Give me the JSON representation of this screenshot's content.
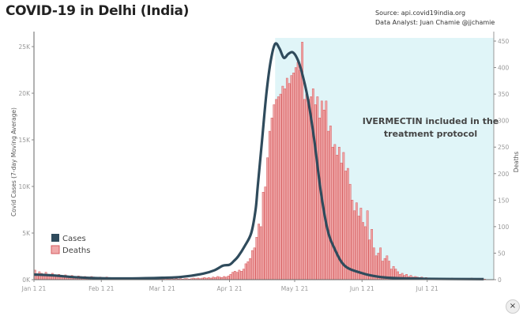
{
  "title": "COVID-19 in Delhi (India)",
  "source": "Source: api.covid19india.org",
  "analyst": "Data Analyst:  Juan Chamie @jjchamie",
  "annotation": [
    "IVERMECTIN included in the",
    "treatment protocol"
  ],
  "close_label": "×",
  "colors": {
    "cases": "#2f4b5c",
    "deaths_fill": "#f0a9aa",
    "deaths_stroke": "#d65b5e",
    "shade": "#e0f5f8"
  },
  "chart_data": {
    "type": "bar+line",
    "xlabel": "",
    "ylabel_left": "Covid Cases (7-day Moving Average)",
    "ylabel_right": "Deaths",
    "x_ticks": [
      "Jan 1 21",
      "Feb 1 21",
      "Mar 1 21",
      "Apr 1 21",
      "May 1 21",
      "Jun 1 21",
      "Jul 1 21"
    ],
    "x_tick_dates": [
      "2021-01-01",
      "2021-02-01",
      "2021-03-01",
      "2021-04-01",
      "2021-05-01",
      "2021-06-01",
      "2021-07-01"
    ],
    "y_left_ticks": [
      "0K",
      "5K",
      "10K",
      "15K",
      "20K",
      "25K"
    ],
    "y_left_values": [
      0,
      5000,
      10000,
      15000,
      20000,
      25000
    ],
    "y_right_ticks": [
      "0",
      "50",
      "100",
      "150",
      "200",
      "250",
      "300",
      "350",
      "400",
      "450"
    ],
    "y_right_values": [
      0,
      50,
      100,
      150,
      200,
      250,
      300,
      350,
      400,
      450
    ],
    "grid": false,
    "legend": {
      "placement": "bottom-left",
      "entries": [
        "Cases",
        "Deaths"
      ]
    },
    "shaded_region": {
      "start": "2021-04-22",
      "end": "2021-07-27",
      "label": "IVERMECTIN included in the treatment protocol"
    },
    "deaths_start_date": "2021-01-01",
    "series": [
      {
        "name": "Cases",
        "kind": "line",
        "axis": "left",
        "points": [
          [
            "2021-01-01",
            550
          ],
          [
            "2021-01-10",
            450
          ],
          [
            "2021-01-20",
            260
          ],
          [
            "2021-02-01",
            150
          ],
          [
            "2021-02-15",
            130
          ],
          [
            "2021-03-01",
            200
          ],
          [
            "2021-03-10",
            300
          ],
          [
            "2021-03-20",
            650
          ],
          [
            "2021-03-25",
            1000
          ],
          [
            "2021-03-29",
            1500
          ],
          [
            "2021-04-01",
            1600
          ],
          [
            "2021-04-03",
            2000
          ],
          [
            "2021-04-05",
            2500
          ],
          [
            "2021-04-08",
            3600
          ],
          [
            "2021-04-11",
            5000
          ],
          [
            "2021-04-13",
            7500
          ],
          [
            "2021-04-14",
            10000
          ],
          [
            "2021-04-16",
            15000
          ],
          [
            "2021-04-18",
            20000
          ],
          [
            "2021-04-20",
            23500
          ],
          [
            "2021-04-22",
            25300
          ],
          [
            "2021-04-24",
            24800
          ],
          [
            "2021-04-26",
            23800
          ],
          [
            "2021-04-28",
            24200
          ],
          [
            "2021-04-30",
            24400
          ],
          [
            "2021-05-02",
            23800
          ],
          [
            "2021-05-04",
            22500
          ],
          [
            "2021-05-07",
            19500
          ],
          [
            "2021-05-10",
            15000
          ],
          [
            "2021-05-13",
            9500
          ],
          [
            "2021-05-16",
            5500
          ],
          [
            "2021-05-19",
            3500
          ],
          [
            "2021-05-24",
            1500
          ],
          [
            "2021-06-01",
            700
          ],
          [
            "2021-06-08",
            330
          ],
          [
            "2021-06-15",
            180
          ],
          [
            "2021-07-01",
            90
          ],
          [
            "2021-07-27",
            50
          ]
        ]
      },
      {
        "name": "Deaths",
        "kind": "bar",
        "axis": "right",
        "values": [
          18,
          10,
          15,
          12,
          9,
          14,
          10,
          8,
          12,
          9,
          7,
          10,
          8,
          6,
          9,
          7,
          5,
          8,
          6,
          5,
          7,
          6,
          4,
          6,
          5,
          4,
          6,
          5,
          4,
          3,
          5,
          4,
          3,
          5,
          3,
          2,
          4,
          3,
          2,
          3,
          2,
          1,
          3,
          2,
          2,
          1,
          2,
          1,
          2,
          1,
          1,
          2,
          1,
          1,
          2,
          1,
          2,
          1,
          1,
          1,
          2,
          1,
          1,
          2,
          1,
          2,
          1,
          2,
          1,
          2,
          2,
          1,
          2,
          3,
          2,
          3,
          2,
          3,
          4,
          3,
          4,
          3,
          5,
          4,
          6,
          5,
          4,
          6,
          5,
          7,
          10,
          14,
          16,
          14,
          18,
          16,
          20,
          30,
          34,
          40,
          55,
          60,
          80,
          105,
          100,
          165,
          175,
          230,
          280,
          305,
          330,
          340,
          345,
          350,
          365,
          360,
          380,
          370,
          385,
          390,
          400,
          410,
          395,
          448,
          340,
          350,
          340,
          345,
          360,
          330,
          345,
          305,
          337,
          320,
          337,
          280,
          290,
          250,
          255,
          235,
          250,
          220,
          240,
          205,
          210,
          180,
          150,
          130,
          145,
          120,
          135,
          108,
          100,
          130,
          75,
          95,
          60,
          45,
          50,
          60,
          35,
          40,
          45,
          35,
          20,
          25,
          20,
          15,
          10,
          12,
          8,
          10,
          6,
          8,
          5,
          6,
          5,
          4,
          5,
          3,
          4,
          2,
          3,
          2,
          2,
          3,
          2,
          1,
          2,
          2,
          1,
          2,
          3,
          1,
          2,
          1,
          2,
          1,
          1,
          2,
          1,
          3,
          1,
          2,
          1,
          1,
          1,
          1
        ]
      }
    ]
  }
}
